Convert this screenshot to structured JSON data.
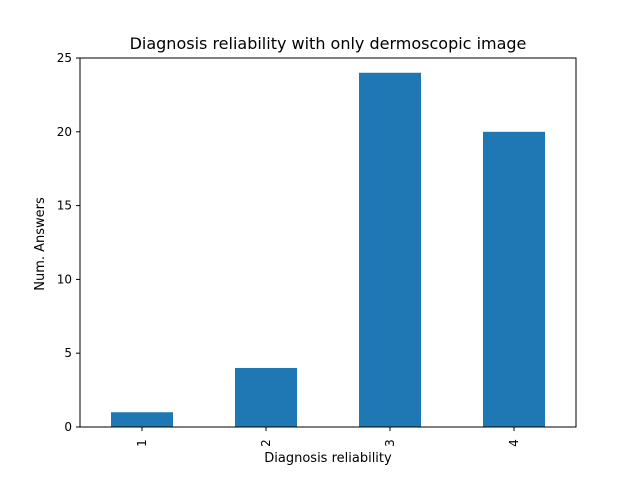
{
  "chart_data": {
    "type": "bar",
    "title": "Diagnosis reliability with only dermoscopic image",
    "xlabel": "Diagnosis reliability",
    "ylabel": "Num. Answers",
    "categories": [
      "1",
      "2",
      "3",
      "4"
    ],
    "values": [
      1,
      4,
      24,
      20
    ],
    "ylim": [
      0,
      25
    ],
    "yticks": [
      0,
      5,
      10,
      15,
      20,
      25
    ],
    "grid": false,
    "legend": "none",
    "bar_color": "#1f77b4"
  }
}
